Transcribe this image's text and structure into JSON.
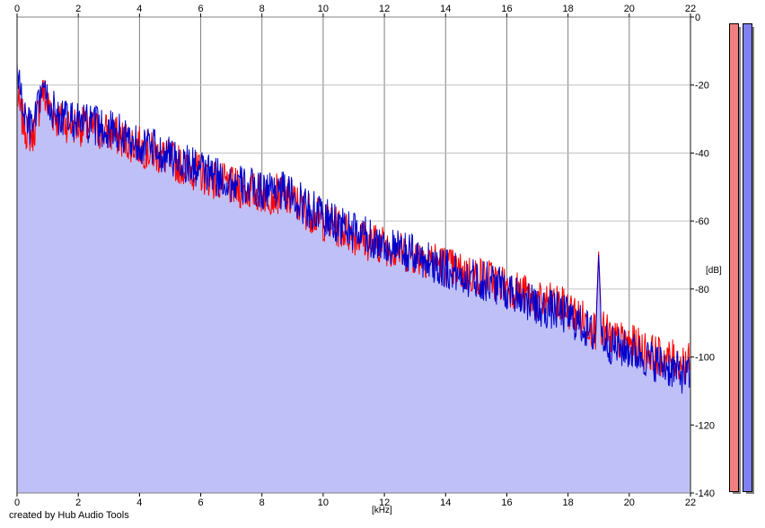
{
  "chart_data": {
    "type": "area",
    "xlabel": "[kHz]",
    "ylabel": "[dB]",
    "xlim": [
      0,
      22
    ],
    "ylim": [
      -140,
      0
    ],
    "x_ticks": [
      0,
      2,
      4,
      6,
      8,
      10,
      12,
      14,
      16,
      18,
      20,
      22
    ],
    "y_ticks": [
      0,
      -20,
      -40,
      -60,
      -80,
      -100,
      -120,
      -140
    ],
    "grid": true,
    "y_ticks_position": "right",
    "x_ticks_position": "top-and-bottom",
    "fill_color": "#c0c0f8",
    "series": [
      {
        "color": "#ff0000",
        "x": [
          0,
          0.1,
          0.3,
          0.5,
          0.7,
          0.8,
          1.0,
          1.3,
          1.6,
          2.0,
          2.5,
          3.0,
          3.5,
          4.0,
          4.5,
          5.0,
          5.5,
          6.0,
          6.5,
          7.0,
          7.5,
          8.0,
          8.5,
          9.0,
          9.5,
          10.0,
          10.5,
          11.0,
          11.5,
          12.0,
          12.5,
          13.0,
          13.5,
          14.0,
          14.5,
          15.0,
          15.5,
          16.0,
          16.5,
          17.0,
          17.5,
          18.0,
          18.5,
          18.9,
          19.0,
          19.1,
          19.5,
          20.0,
          20.5,
          21.0,
          21.5,
          22.0
        ],
        "values": [
          -23,
          -28,
          -33,
          -35,
          -28,
          -21,
          -26,
          -30,
          -31,
          -32,
          -33,
          -34,
          -36,
          -38,
          -40,
          -42,
          -44,
          -46,
          -48,
          -50,
          -51,
          -52,
          -52,
          -54,
          -57,
          -60,
          -62,
          -64,
          -66,
          -67,
          -69,
          -70,
          -71,
          -73,
          -75,
          -76,
          -77,
          -79,
          -81,
          -84,
          -84,
          -86,
          -89,
          -92,
          -69,
          -92,
          -95,
          -96,
          -98,
          -100,
          -101,
          -102
        ]
      },
      {
        "color": "#0000cc",
        "x": [
          0,
          0.1,
          0.3,
          0.5,
          0.7,
          0.8,
          1.0,
          1.3,
          1.6,
          2.0,
          2.5,
          3.0,
          3.5,
          4.0,
          4.5,
          5.0,
          5.5,
          6.0,
          6.5,
          7.0,
          7.5,
          8.0,
          8.5,
          9.0,
          9.5,
          10.0,
          10.5,
          11.0,
          11.5,
          12.0,
          12.5,
          13.0,
          13.5,
          14.0,
          14.5,
          15.0,
          15.5,
          16.0,
          16.5,
          17.0,
          17.5,
          18.0,
          18.5,
          18.9,
          19.0,
          19.1,
          19.5,
          20.0,
          20.5,
          21.0,
          21.5,
          22.0
        ],
        "values": [
          -14,
          -22,
          -31,
          -33,
          -27,
          -20,
          -25,
          -29,
          -30,
          -31,
          -32,
          -33,
          -35,
          -37,
          -39,
          -41,
          -43,
          -45,
          -47,
          -49,
          -50,
          -51,
          -50,
          -53,
          -56,
          -59,
          -61,
          -63,
          -65,
          -67,
          -69,
          -70,
          -72,
          -74,
          -76,
          -77,
          -78,
          -80,
          -82,
          -86,
          -86,
          -88,
          -91,
          -94,
          -70,
          -94,
          -97,
          -98,
          -100,
          -102,
          -104,
          -106
        ]
      }
    ]
  },
  "footer": {
    "credit": "created by Hub Audio Tools"
  },
  "meters": [
    {
      "channel": "left",
      "color": "#f08080"
    },
    {
      "channel": "right",
      "color": "#8080f0"
    }
  ]
}
